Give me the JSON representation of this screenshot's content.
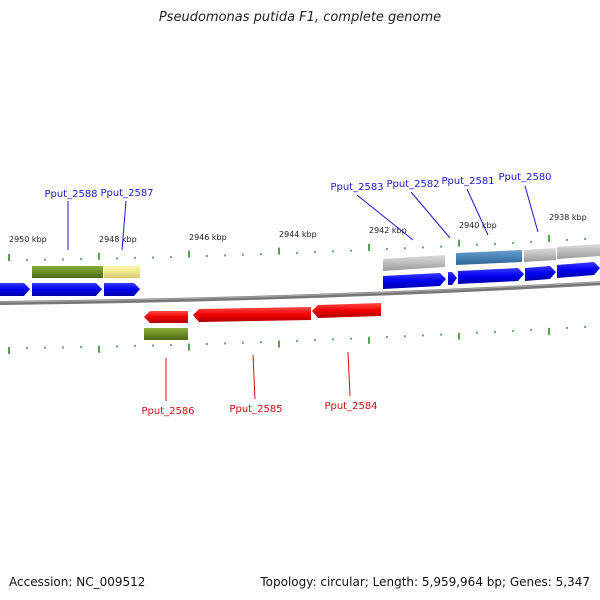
{
  "header": {
    "title": "Pseudomonas putida F1, complete genome"
  },
  "footer": {
    "accession": "Accession: NC_009512",
    "summary": "Topology: circular; Length: 5,959,964 bp; Genes: 5,347"
  },
  "colors": {
    "forward_cds": "#0000ee",
    "reverse_cds": "#ee0000",
    "label_forward": "#1a1acc",
    "label_reverse": "#cc1111",
    "backbone": "#808080",
    "tick": "#2a8a2a",
    "cog_olive": "#6b8e23",
    "cog_khaki": "#f0e68c",
    "cog_steelblue": "#4682b4",
    "cog_silver": "#bdbdbd"
  },
  "ticks": {
    "unit": "kbp",
    "labels": [
      "2950 kbp",
      "2948 kbp",
      "2946 kbp",
      "2944 kbp",
      "2942 kbp",
      "2940 kbp",
      "2938 kbp"
    ]
  },
  "genes_forward": [
    {
      "name": "Pput_2588"
    },
    {
      "name": "Pput_2587"
    },
    {
      "name": "Pput_2583"
    },
    {
      "name": "Pput_2582"
    },
    {
      "name": "Pput_2581"
    },
    {
      "name": "Pput_2580"
    }
  ],
  "genes_reverse": [
    {
      "name": "Pput_2586"
    },
    {
      "name": "Pput_2585"
    },
    {
      "name": "Pput_2584"
    }
  ]
}
